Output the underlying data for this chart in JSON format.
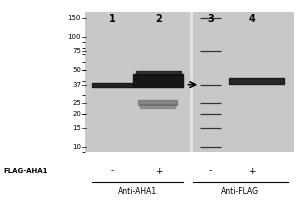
{
  "fig_bg": "#c8c8c8",
  "panel_bg": "#b0b0b0",
  "white_bg": "#ffffff",
  "mw_labels": [
    "150",
    "100",
    "75",
    "50",
    "37",
    "25",
    "20",
    "15",
    "10"
  ],
  "mw_values": [
    150,
    100,
    75,
    50,
    37,
    25,
    20,
    15,
    10
  ],
  "lane_labels": [
    "1",
    "2",
    "3",
    "4"
  ],
  "flag_signs": [
    "-",
    "+",
    "-",
    "+"
  ],
  "flag_label": "FLAG-AHA1",
  "antibody_labels": [
    "Anti-AHA1",
    "Anti-FLAG"
  ],
  "ymin": 9,
  "ymax": 170,
  "band_dark": "#111111",
  "band_medium": "#666666",
  "band_light": "#999999",
  "marker_color": "#333333"
}
